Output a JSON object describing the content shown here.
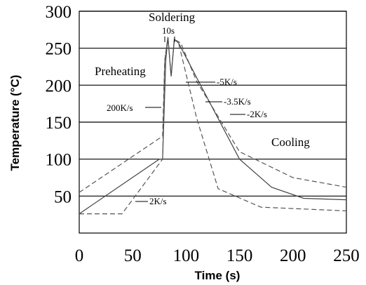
{
  "chart_data": {
    "type": "line",
    "xlabel": "Time (s)",
    "ylabel": "Temperature (°C)",
    "xlim": [
      0,
      250
    ],
    "ylim": [
      0,
      300
    ],
    "xticks": [
      "0",
      "50",
      "100",
      "150",
      "200",
      "250"
    ],
    "yticks": [
      "50",
      "100",
      "150",
      "200",
      "250",
      "300"
    ],
    "grid": "horizontal",
    "series": [
      {
        "style": "dashed",
        "points": [
          [
            0,
            55
          ],
          [
            78,
            131
          ],
          [
            80,
            233
          ],
          [
            83,
            265
          ],
          [
            86,
            212
          ],
          [
            89,
            262
          ],
          [
            95,
            257
          ],
          [
            110,
            205
          ],
          [
            150,
            110
          ],
          [
            200,
            75
          ],
          [
            250,
            62
          ]
        ]
      },
      {
        "style": "solid",
        "points": [
          [
            0,
            26
          ],
          [
            75,
            100
          ],
          [
            78,
            100
          ],
          [
            81,
            233
          ],
          [
            83,
            265
          ],
          [
            86,
            212
          ],
          [
            89,
            262
          ],
          [
            93,
            257
          ],
          [
            110,
            210
          ],
          [
            150,
            100
          ],
          [
            180,
            62
          ],
          [
            210,
            47
          ],
          [
            250,
            45
          ]
        ]
      },
      {
        "style": "dashed",
        "points": [
          [
            0,
            26
          ],
          [
            40,
            26
          ],
          [
            78,
            100
          ],
          [
            80,
            233
          ],
          [
            83,
            265
          ],
          [
            86,
            212
          ],
          [
            89,
            262
          ],
          [
            93,
            257
          ],
          [
            110,
            155
          ],
          [
            130,
            60
          ],
          [
            170,
            35
          ],
          [
            250,
            30
          ]
        ]
      }
    ],
    "annotations": {
      "soldering": "Soldering",
      "duration": "10s",
      "preheating": "Preheating",
      "rate_200": "200K/s",
      "rate_m5": "-5K/s",
      "rate_m35": "-3.5K/s",
      "rate_m2": "-2K/s",
      "cooling": "Cooling",
      "rate_2": "2K/s"
    }
  }
}
